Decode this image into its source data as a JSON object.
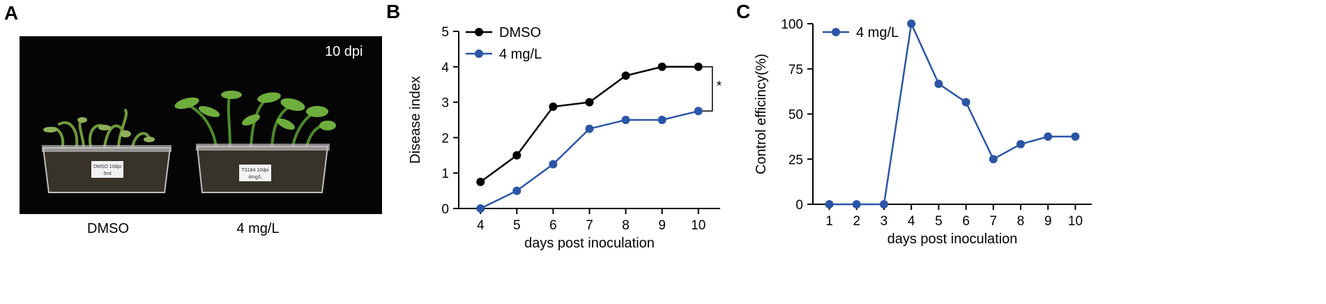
{
  "panels": {
    "a": {
      "letter": "A",
      "tag": "10 dpi",
      "caption_left": "DMSO",
      "caption_right": "4 mg/L",
      "label_left_line1": "DMSO 10dpi",
      "label_left_line2": "5ml",
      "label_right_line1": "T3184 10dpi",
      "label_right_line2": "4mg/L"
    },
    "b": {
      "letter": "B"
    },
    "c": {
      "letter": "C"
    }
  },
  "colors": {
    "dmso": "#000000",
    "treatment": "#2b55a6",
    "photo_background": "#050505",
    "leaf": "#5a9a2e"
  },
  "chart_data": [
    {
      "id": "B",
      "type": "line",
      "x": [
        4,
        5,
        6,
        7,
        8,
        9,
        10
      ],
      "xlim": [
        3.4,
        10.6
      ],
      "ylim": [
        0,
        5
      ],
      "yticks": [
        0,
        1,
        2,
        3,
        4,
        5
      ],
      "xlabel": "days post inoculation",
      "ylabel": "Disease index",
      "legend": "top-left",
      "series": [
        {
          "name": "DMSO",
          "color": "#000000",
          "values": [
            0.75,
            1.5,
            2.875,
            3.0,
            3.75,
            4.0,
            4.0
          ]
        },
        {
          "name": "4 mg/L",
          "color": "#2b55a6",
          "values": [
            0.0,
            0.5,
            1.25,
            2.25,
            2.5,
            2.5,
            2.75
          ]
        }
      ],
      "significance": "*"
    },
    {
      "id": "C",
      "type": "line",
      "x": [
        1,
        2,
        3,
        4,
        5,
        6,
        7,
        8,
        9,
        10
      ],
      "xlim": [
        0.4,
        10.6
      ],
      "ylim": [
        0,
        100
      ],
      "yticks": [
        0,
        25,
        50,
        75,
        100
      ],
      "xlabel": "days post inoculation",
      "ylabel": "Control efficincy(%)",
      "legend": "top-left",
      "series": [
        {
          "name": "4 mg/L",
          "color": "#2b55a6",
          "values": [
            0,
            0,
            0,
            100,
            66.7,
            56.5,
            25,
            33.3,
            37.5,
            37.5
          ]
        }
      ]
    }
  ]
}
